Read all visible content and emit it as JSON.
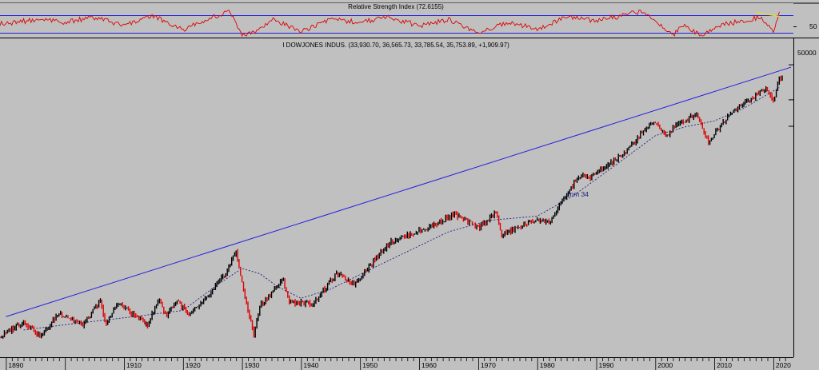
{
  "chart_data": [
    {
      "type": "line",
      "title": "Relative Strength Index (72.6155)",
      "y_tick_labels": [
        "50"
      ],
      "reference_lines": [
        70,
        30
      ],
      "series_color": "#e00000",
      "x": [
        1889,
        1895,
        1900,
        1905,
        1910,
        1915,
        1920,
        1925,
        1928,
        1930,
        1932,
        1935,
        1940,
        1945,
        1950,
        1955,
        1960,
        1965,
        1970,
        1975,
        1980,
        1985,
        1990,
        1995,
        1998,
        2000,
        2003,
        2005,
        2008,
        2009,
        2012,
        2015,
        2018,
        2019,
        2020,
        2021
      ],
      "values": [
        55,
        62,
        58,
        66,
        52,
        68,
        45,
        66,
        76,
        35,
        40,
        63,
        42,
        62,
        58,
        66,
        52,
        62,
        40,
        57,
        47,
        66,
        61,
        70,
        78,
        60,
        36,
        55,
        30,
        42,
        55,
        60,
        68,
        52,
        42,
        72.6
      ],
      "trendline": {
        "color": "#e8e800",
        "from": [
          2017,
          74
        ],
        "to": [
          2021,
          68
        ]
      }
    },
    {
      "type": "candlestick",
      "title": "I DOWJONES INDUS. (33,930.70, 36,565.73, 33,785.54, 35,753.89, +1,909.97)",
      "y_scale": "log",
      "y_tick_labels": [
        "50000"
      ],
      "x_tick_labels": [
        "1890",
        "1910",
        "1920",
        "1930",
        "1940",
        "1950",
        "1960",
        "1970",
        "1980",
        "1990",
        "2000",
        "2010",
        "2020"
      ],
      "colors": {
        "up": "#000000",
        "down": "#e00000",
        "trendline": "#2020e0",
        "moving_average": "#202080"
      },
      "moving_average_label": "mm 34",
      "last_bar": {
        "open": 33930.7,
        "high": 36565.73,
        "low": 33785.54,
        "close": 35753.89,
        "change": 1909.97
      },
      "x": [
        1889,
        1893,
        1896,
        1899,
        1903,
        1906,
        1907,
        1909,
        1914,
        1916,
        1917,
        1919,
        1921,
        1924,
        1927,
        1929,
        1930,
        1932,
        1933,
        1937,
        1938,
        1942,
        1946,
        1949,
        1955,
        1962,
        1966,
        1970,
        1973,
        1974,
        1980,
        1982,
        1987,
        1989,
        1995,
        1998,
        2000,
        2002,
        2003,
        2007,
        2009,
        2013,
        2015,
        2018,
        2019,
        2020,
        2021
      ],
      "values": [
        40,
        60,
        40,
        75,
        55,
        100,
        55,
        98,
        55,
        110,
        70,
        105,
        70,
        110,
        200,
        380,
        160,
        42,
        90,
        180,
        100,
        95,
        210,
        160,
        480,
        720,
        1000,
        700,
        1050,
        580,
        880,
        800,
        2700,
        2600,
        5000,
        9000,
        11000,
        7800,
        9500,
        14000,
        6600,
        15000,
        18000,
        25000,
        26500,
        19000,
        35753.89
      ],
      "moving_average": {
        "x": [
          1893,
          1900,
          1910,
          1920,
          1926,
          1930,
          1933,
          1936,
          1940,
          1945,
          1955,
          1965,
          1972,
          1980,
          1986,
          1993,
          2000,
          2005,
          2010,
          2015,
          2021
        ],
        "values": [
          48,
          55,
          66,
          80,
          160,
          240,
          210,
          150,
          110,
          140,
          300,
          630,
          850,
          950,
          1600,
          3500,
          7800,
          9800,
          11500,
          16000,
          27500
        ]
      },
      "trendline": {
        "from": [
          1890,
          68
        ],
        "to": [
          2023,
          47000
        ]
      }
    }
  ]
}
